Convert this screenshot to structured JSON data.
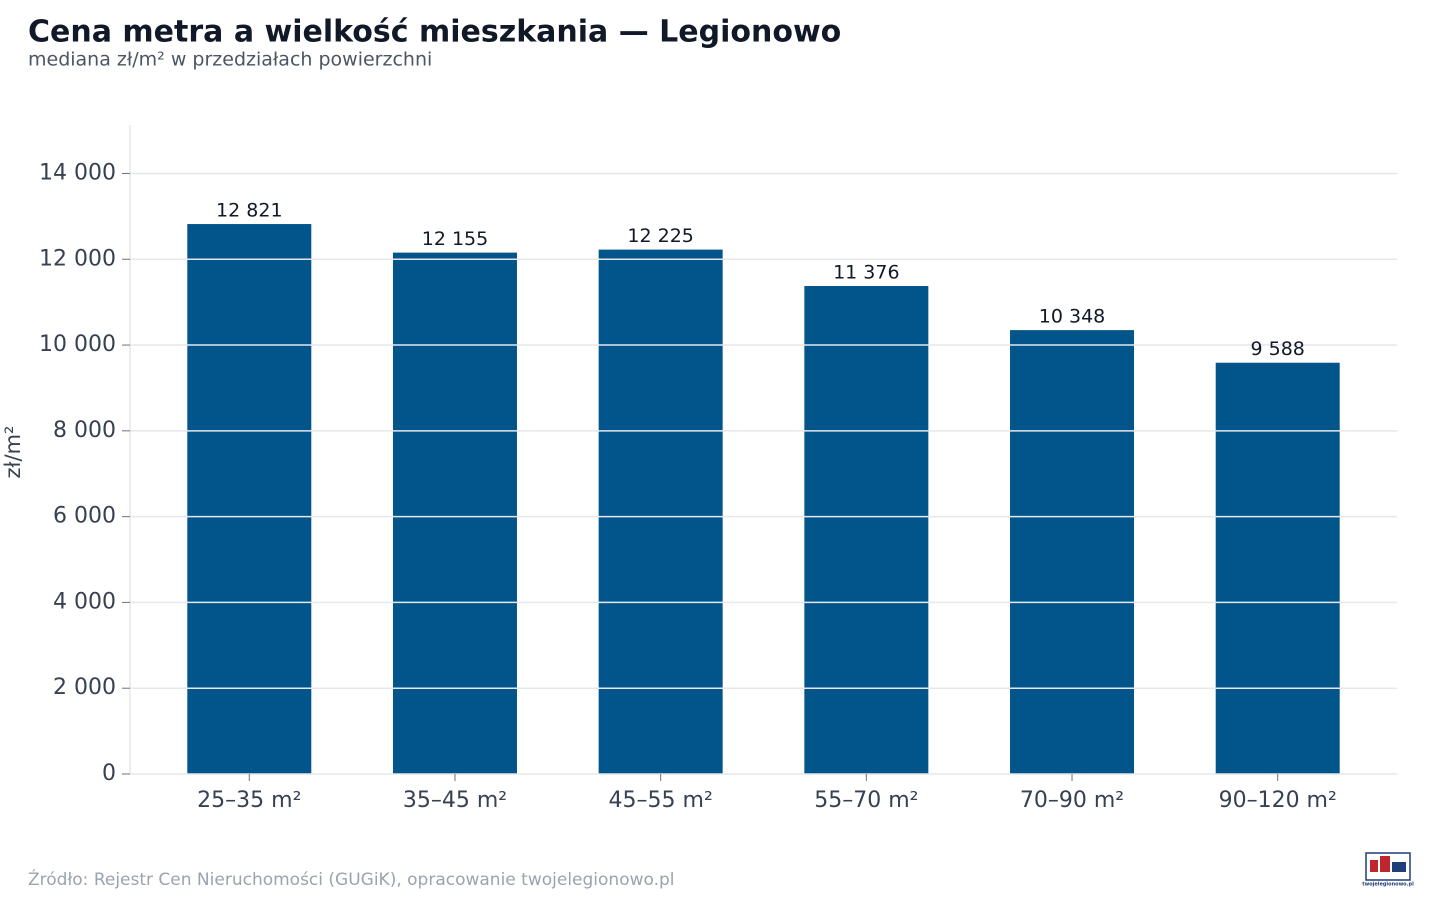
{
  "chart_data": {
    "type": "bar",
    "title": "Cena metra a wielkość mieszkania — Legionowo",
    "subtitle": "mediana zł/m² w przedziałach powierzchni",
    "y_label": "zł/m²",
    "source": "Źródło: Rejestr Cen Nieruchomości (GUGiK), opracowanie twojelegionowo.pl",
    "logo_text": "twojelegionowo.pl",
    "categories": [
      "25–35 m²",
      "35–45 m²",
      "45–55 m²",
      "55–70 m²",
      "70–90 m²",
      "90–120 m²"
    ],
    "values": [
      12821,
      12155,
      12225,
      11376,
      10348,
      9588
    ],
    "value_labels": [
      "12 821",
      "12 155",
      "12 225",
      "11 376",
      "10 348",
      "9 588"
    ],
    "color": "#02558b",
    "ylim": [
      0,
      15130
    ],
    "yticks": [
      0,
      {
        "value": 2000,
        "label": "2 000"
      },
      {
        "value": 4000,
        "label": "4 000"
      },
      {
        "value": 6000,
        "label": "6 000"
      },
      {
        "value": 8000,
        "label": "8 000"
      },
      {
        "value": 10000,
        "label": "10 000"
      },
      {
        "value": 12000,
        "label": "12 000"
      },
      {
        "value": 14000,
        "label": "14 000"
      }
    ],
    "grid": true
  }
}
